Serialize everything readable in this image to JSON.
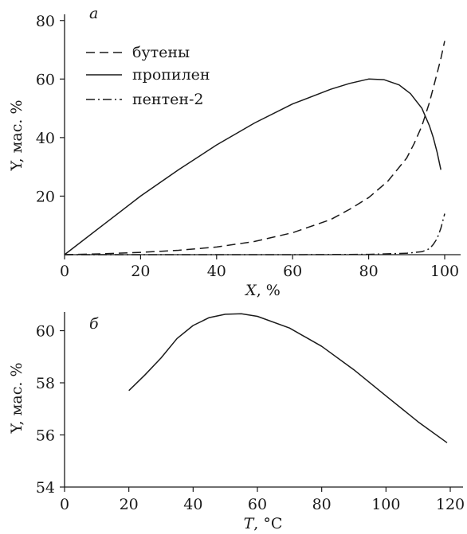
{
  "chart_data": [
    {
      "type": "line",
      "panel_label": "а",
      "xlabel_var": "X",
      "xlabel_unit": ", %",
      "ylabel": "Y, мас. %",
      "xlim": [
        0,
        105
      ],
      "ylim": [
        0,
        82
      ],
      "x_ticks": [
        0,
        20,
        40,
        60,
        80,
        100
      ],
      "y_ticks": [
        20,
        40,
        60,
        80
      ],
      "grid": false,
      "legend_position": "top-left",
      "series": [
        {
          "name": "бутены",
          "dash": "dashed",
          "x": [
            0,
            10,
            20,
            30,
            40,
            50,
            60,
            70,
            75,
            80,
            85,
            90,
            92,
            94,
            96,
            97,
            98,
            99,
            100
          ],
          "y": [
            0,
            0.3,
            0.8,
            1.5,
            2.6,
            4.5,
            7.5,
            12,
            15.5,
            19.5,
            25,
            33,
            38,
            44,
            52,
            57,
            62,
            67,
            73
          ]
        },
        {
          "name": "пропилен",
          "dash": "solid",
          "x": [
            0,
            10,
            20,
            30,
            40,
            50,
            60,
            70,
            75,
            80,
            84,
            88,
            91,
            94,
            96,
            97,
            98,
            99
          ],
          "y": [
            0,
            10,
            20,
            29,
            37.5,
            45,
            51.5,
            56.5,
            58.5,
            60,
            59.8,
            58,
            55,
            50,
            44,
            40,
            35,
            29
          ]
        },
        {
          "name": "пентен-2",
          "dash": "dashdot",
          "x": [
            0,
            20,
            40,
            60,
            80,
            90,
            94,
            96,
            97,
            98,
            99,
            100
          ],
          "y": [
            0,
            0,
            0,
            0,
            0.1,
            0.5,
            1,
            2,
            3.5,
            5.5,
            9,
            14
          ]
        }
      ]
    },
    {
      "type": "line",
      "panel_label": "б",
      "xlabel_var": "T",
      "xlabel_unit": ", °C",
      "ylabel": "Y, мас. %",
      "xlim": [
        0,
        122
      ],
      "ylim": [
        54,
        60.7
      ],
      "x_ticks": [
        0,
        20,
        40,
        60,
        80,
        100,
        120
      ],
      "y_ticks": [
        54,
        56,
        58,
        60
      ],
      "grid": false,
      "series": [
        {
          "dash": "solid",
          "x": [
            20,
            25,
            30,
            35,
            40,
            45,
            50,
            55,
            60,
            70,
            80,
            90,
            100,
            110,
            119
          ],
          "y": [
            57.7,
            58.3,
            58.95,
            59.7,
            60.2,
            60.5,
            60.63,
            60.65,
            60.55,
            60.1,
            59.4,
            58.5,
            57.5,
            56.5,
            55.7
          ]
        }
      ]
    }
  ]
}
